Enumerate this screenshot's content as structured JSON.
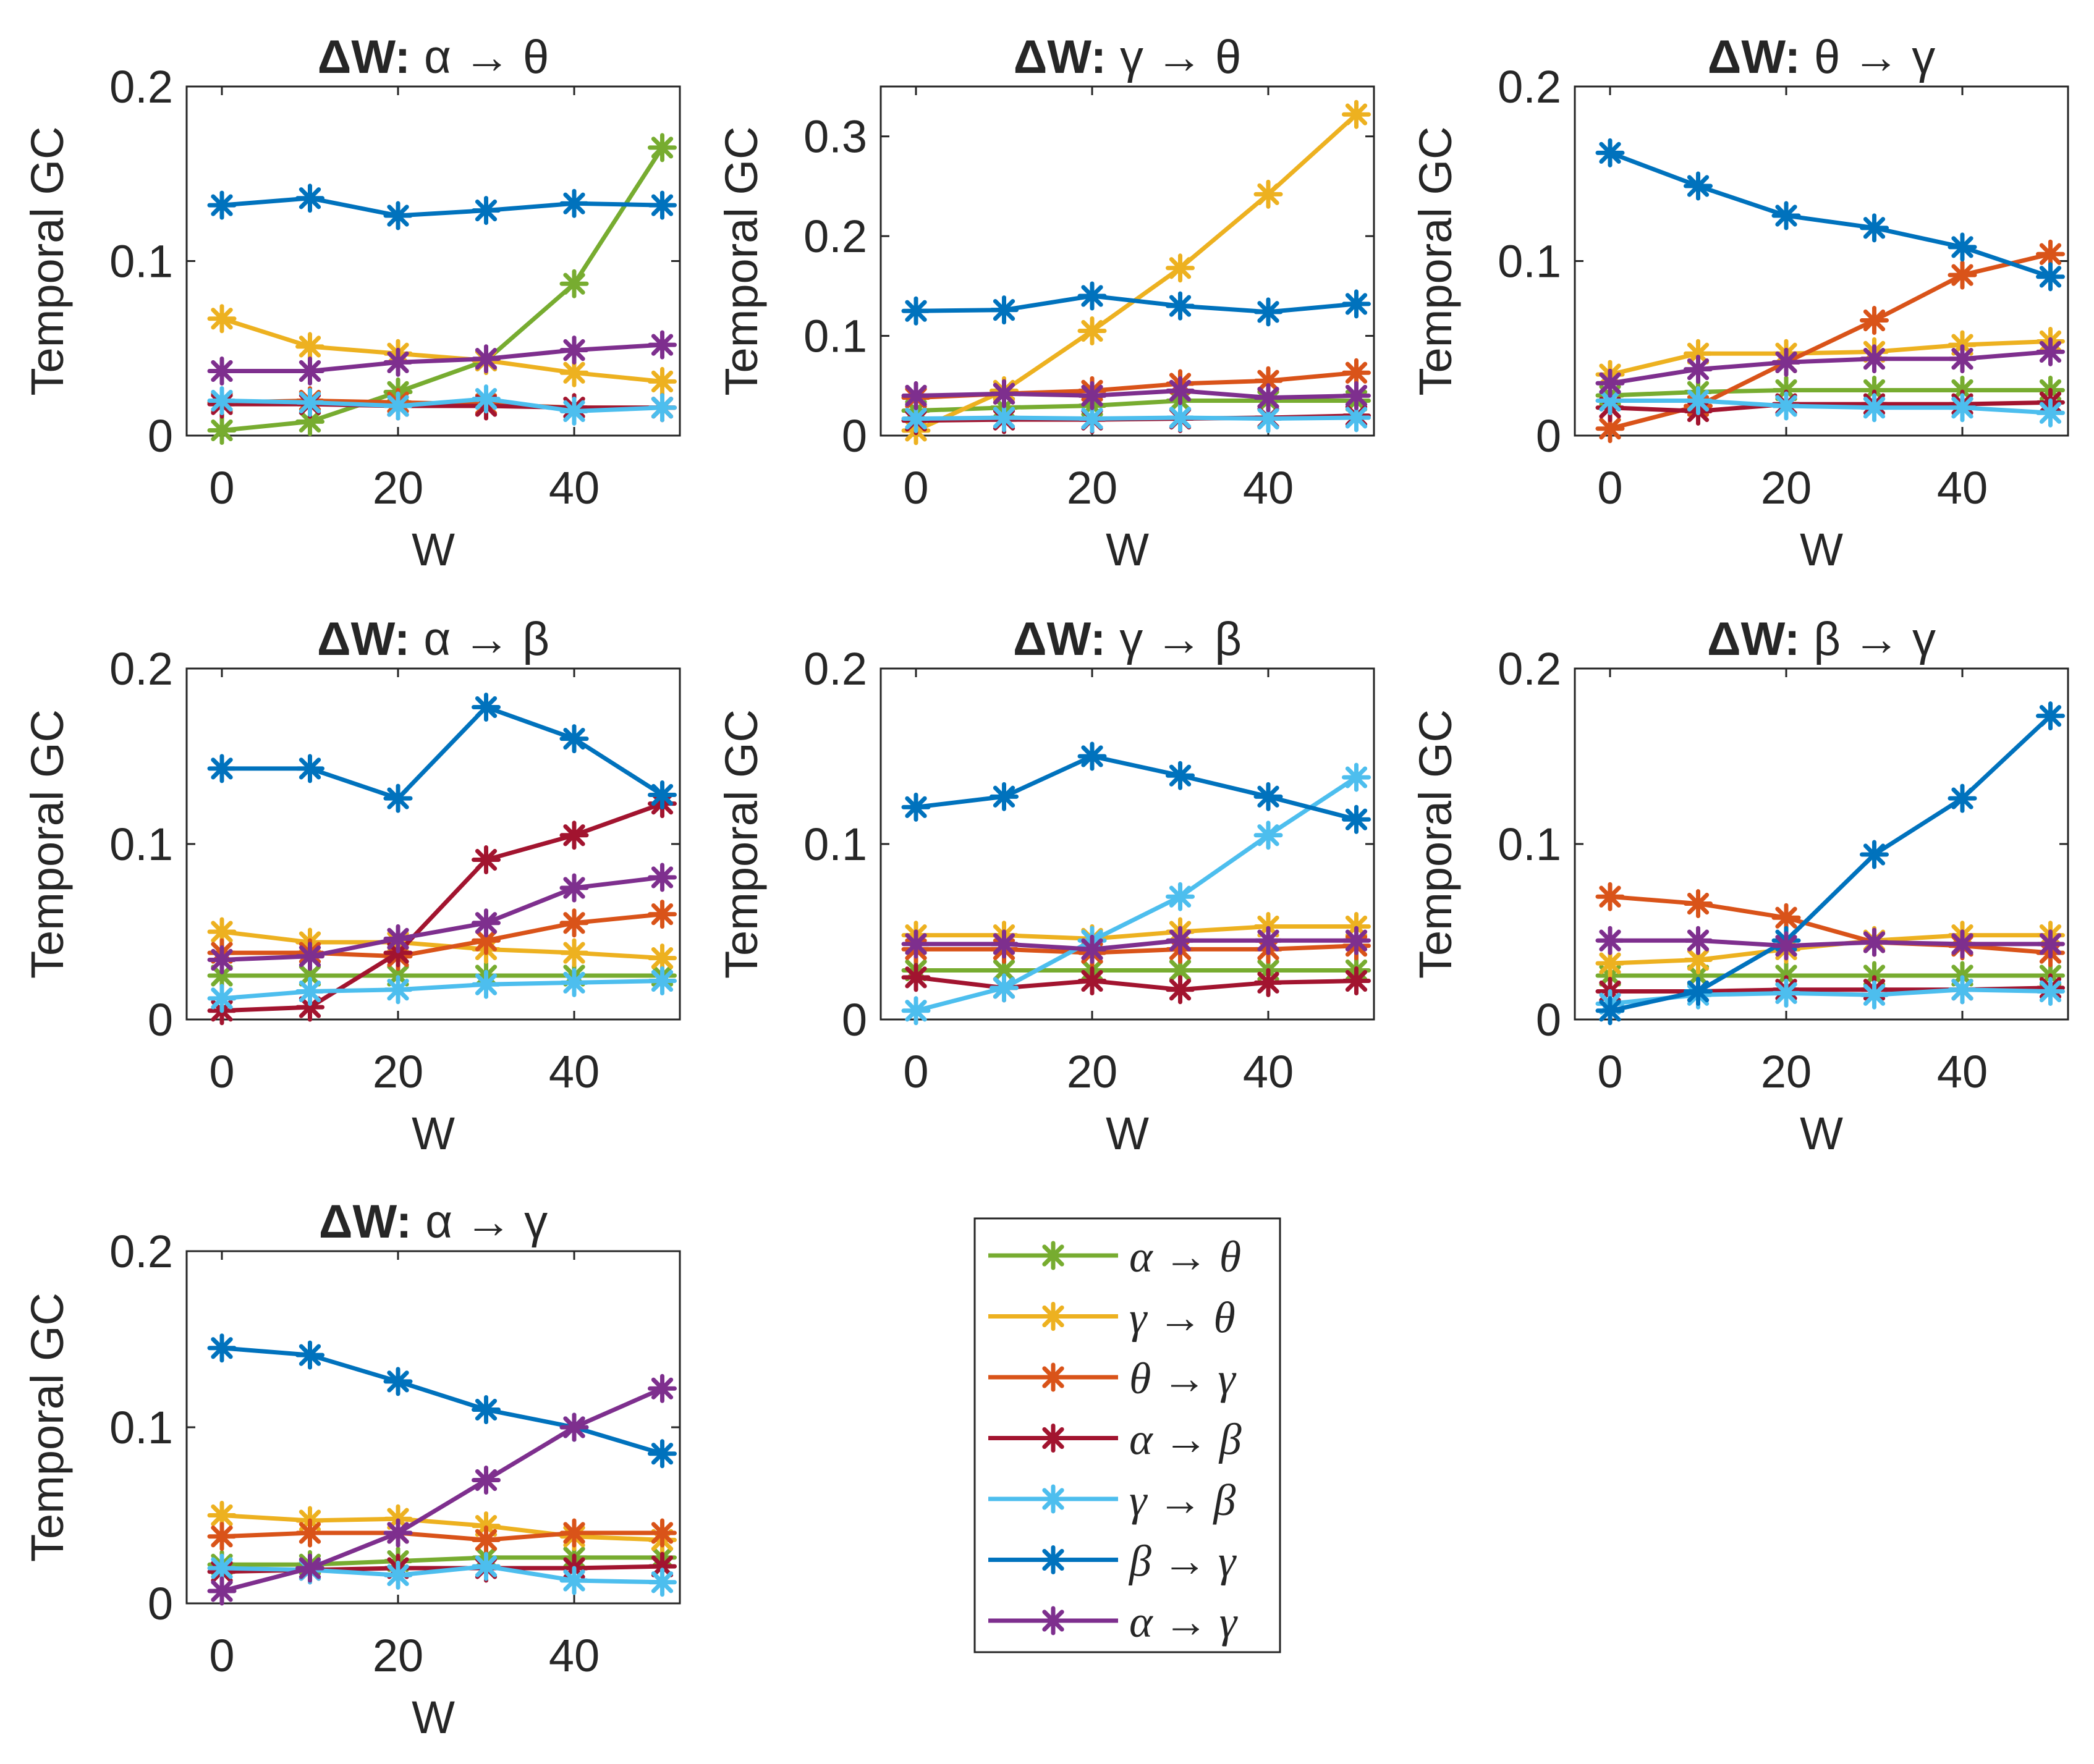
{
  "figure": {
    "arrow": "→",
    "legend": {
      "series_names": [
        "α → θ",
        "γ → θ",
        "θ → γ",
        "α → β",
        "γ → β",
        "β → γ",
        "α → γ"
      ]
    }
  },
  "chart_data": [
    {
      "type": "line",
      "title": "ΔW: α → θ",
      "title_prefix": "ΔW:",
      "title_from": "α",
      "title_to": "θ",
      "xlabel": "W",
      "ylabel": "Temporal GC",
      "x": [
        0,
        10,
        20,
        30,
        40,
        50
      ],
      "xlim": [
        -4,
        52
      ],
      "ylim": [
        0,
        0.2
      ],
      "xticks": [
        0,
        20,
        40
      ],
      "xtick_labels": [
        "0",
        "20",
        "40"
      ],
      "yticks": [
        0,
        0.1,
        0.2
      ],
      "ytick_labels": [
        "0",
        "0.1",
        "0.2"
      ],
      "series": [
        {
          "name": "α → θ",
          "color": "#77AC30",
          "values": [
            0.003,
            0.008,
            0.025,
            0.043,
            0.087,
            0.165
          ]
        },
        {
          "name": "γ → θ",
          "color": "#EDB120",
          "values": [
            0.067,
            0.051,
            0.047,
            0.043,
            0.036,
            0.031
          ]
        },
        {
          "name": "θ → γ",
          "color": "#D95319",
          "values": [
            0.019,
            0.02,
            0.019,
            0.018,
            0.016,
            0.016
          ]
        },
        {
          "name": "α → β",
          "color": "#A2142F",
          "values": [
            0.018,
            0.018,
            0.017,
            0.017,
            0.016,
            0.016
          ]
        },
        {
          "name": "γ → β",
          "color": "#4DBEEE",
          "values": [
            0.02,
            0.019,
            0.017,
            0.021,
            0.014,
            0.016
          ]
        },
        {
          "name": "β → γ",
          "color": "#0072BD",
          "values": [
            0.132,
            0.136,
            0.126,
            0.129,
            0.133,
            0.132
          ]
        },
        {
          "name": "α → γ",
          "color": "#7E2F8E",
          "values": [
            0.037,
            0.037,
            0.042,
            0.044,
            0.049,
            0.052
          ]
        }
      ]
    },
    {
      "type": "line",
      "title": "ΔW: γ → θ",
      "title_prefix": "ΔW:",
      "title_from": "γ",
      "title_to": "θ",
      "xlabel": "W",
      "ylabel": "Temporal GC",
      "x": [
        0,
        10,
        20,
        30,
        40,
        50
      ],
      "xlim": [
        -4,
        52
      ],
      "ylim": [
        0,
        0.35
      ],
      "xticks": [
        0,
        20,
        40
      ],
      "xtick_labels": [
        "0",
        "20",
        "40"
      ],
      "yticks": [
        0,
        0.1,
        0.2,
        0.3
      ],
      "ytick_labels": [
        "0",
        "0.1",
        "0.2",
        "0.3"
      ],
      "series": [
        {
          "name": "α → θ",
          "color": "#77AC30",
          "values": [
            0.025,
            0.028,
            0.03,
            0.035,
            0.035,
            0.035
          ]
        },
        {
          "name": "γ → θ",
          "color": "#EDB120",
          "values": [
            0.005,
            0.045,
            0.105,
            0.168,
            0.242,
            0.322
          ]
        },
        {
          "name": "θ → γ",
          "color": "#D95319",
          "values": [
            0.038,
            0.042,
            0.045,
            0.052,
            0.055,
            0.063
          ]
        },
        {
          "name": "α → β",
          "color": "#A2142F",
          "values": [
            0.015,
            0.016,
            0.016,
            0.017,
            0.018,
            0.02
          ]
        },
        {
          "name": "γ → β",
          "color": "#4DBEEE",
          "values": [
            0.017,
            0.018,
            0.017,
            0.018,
            0.017,
            0.018
          ]
        },
        {
          "name": "β → γ",
          "color": "#0072BD",
          "values": [
            0.125,
            0.126,
            0.14,
            0.13,
            0.124,
            0.132
          ]
        },
        {
          "name": "α → γ",
          "color": "#7E2F8E",
          "values": [
            0.04,
            0.042,
            0.04,
            0.045,
            0.038,
            0.04
          ]
        }
      ]
    },
    {
      "type": "line",
      "title": "ΔW: θ → γ",
      "title_prefix": "ΔW:",
      "title_from": "θ",
      "title_to": "γ",
      "xlabel": "W",
      "ylabel": "Temporal GC",
      "x": [
        0,
        10,
        20,
        30,
        40,
        50
      ],
      "xlim": [
        -4,
        52
      ],
      "ylim": [
        0,
        0.2
      ],
      "xticks": [
        0,
        20,
        40
      ],
      "xtick_labels": [
        "0",
        "20",
        "40"
      ],
      "yticks": [
        0,
        0.1,
        0.2
      ],
      "ytick_labels": [
        "0",
        "0.1",
        "0.2"
      ],
      "series": [
        {
          "name": "α → θ",
          "color": "#77AC30",
          "values": [
            0.023,
            0.025,
            0.026,
            0.026,
            0.026,
            0.026
          ]
        },
        {
          "name": "γ → θ",
          "color": "#EDB120",
          "values": [
            0.035,
            0.047,
            0.047,
            0.048,
            0.052,
            0.054
          ]
        },
        {
          "name": "θ → γ",
          "color": "#D95319",
          "values": [
            0.004,
            0.017,
            0.042,
            0.066,
            0.092,
            0.104
          ]
        },
        {
          "name": "α → β",
          "color": "#A2142F",
          "values": [
            0.016,
            0.014,
            0.018,
            0.018,
            0.018,
            0.019
          ]
        },
        {
          "name": "γ → β",
          "color": "#4DBEEE",
          "values": [
            0.02,
            0.02,
            0.017,
            0.016,
            0.016,
            0.013
          ]
        },
        {
          "name": "β → γ",
          "color": "#0072BD",
          "values": [
            0.162,
            0.143,
            0.126,
            0.119,
            0.108,
            0.091
          ]
        },
        {
          "name": "α → γ",
          "color": "#7E2F8E",
          "values": [
            0.03,
            0.038,
            0.042,
            0.044,
            0.044,
            0.048
          ]
        }
      ]
    },
    {
      "type": "line",
      "title": "ΔW: α → β",
      "title_prefix": "ΔW:",
      "title_from": "α",
      "title_to": "β",
      "xlabel": "W",
      "ylabel": "Temporal GC",
      "x": [
        0,
        10,
        20,
        30,
        40,
        50
      ],
      "xlim": [
        -4,
        52
      ],
      "ylim": [
        0,
        0.2
      ],
      "xticks": [
        0,
        20,
        40
      ],
      "xtick_labels": [
        "0",
        "20",
        "40"
      ],
      "yticks": [
        0,
        0.1,
        0.2
      ],
      "ytick_labels": [
        "0",
        "0.1",
        "0.2"
      ],
      "series": [
        {
          "name": "α → θ",
          "color": "#77AC30",
          "values": [
            0.025,
            0.025,
            0.025,
            0.025,
            0.025,
            0.025
          ]
        },
        {
          "name": "γ → θ",
          "color": "#EDB120",
          "values": [
            0.05,
            0.044,
            0.044,
            0.04,
            0.038,
            0.035
          ]
        },
        {
          "name": "θ → γ",
          "color": "#D95319",
          "values": [
            0.038,
            0.038,
            0.036,
            0.045,
            0.055,
            0.06
          ]
        },
        {
          "name": "α → β",
          "color": "#A2142F",
          "values": [
            0.005,
            0.007,
            0.038,
            0.091,
            0.105,
            0.123
          ]
        },
        {
          "name": "γ → β",
          "color": "#4DBEEE",
          "values": [
            0.012,
            0.016,
            0.017,
            0.02,
            0.021,
            0.022
          ]
        },
        {
          "name": "β → γ",
          "color": "#0072BD",
          "values": [
            0.143,
            0.143,
            0.126,
            0.178,
            0.16,
            0.128
          ]
        },
        {
          "name": "α → γ",
          "color": "#7E2F8E",
          "values": [
            0.034,
            0.036,
            0.046,
            0.055,
            0.075,
            0.081
          ]
        }
      ]
    },
    {
      "type": "line",
      "title": "ΔW: γ → β",
      "title_prefix": "ΔW:",
      "title_from": "γ",
      "title_to": "β",
      "xlabel": "W",
      "ylabel": "Temporal GC",
      "x": [
        0,
        10,
        20,
        30,
        40,
        50
      ],
      "xlim": [
        -4,
        52
      ],
      "ylim": [
        0,
        0.2
      ],
      "xticks": [
        0,
        20,
        40
      ],
      "xtick_labels": [
        "0",
        "20",
        "40"
      ],
      "yticks": [
        0,
        0.1,
        0.2
      ],
      "ytick_labels": [
        "0",
        "0.1",
        "0.2"
      ],
      "series": [
        {
          "name": "α → θ",
          "color": "#77AC30",
          "values": [
            0.028,
            0.028,
            0.028,
            0.028,
            0.028,
            0.028
          ]
        },
        {
          "name": "γ → θ",
          "color": "#EDB120",
          "values": [
            0.048,
            0.048,
            0.046,
            0.05,
            0.053,
            0.053
          ]
        },
        {
          "name": "θ → γ",
          "color": "#D95319",
          "values": [
            0.04,
            0.04,
            0.038,
            0.04,
            0.04,
            0.042
          ]
        },
        {
          "name": "α → β",
          "color": "#A2142F",
          "values": [
            0.024,
            0.018,
            0.022,
            0.017,
            0.021,
            0.022
          ]
        },
        {
          "name": "γ → β",
          "color": "#4DBEEE",
          "values": [
            0.005,
            0.018,
            0.045,
            0.07,
            0.105,
            0.138
          ]
        },
        {
          "name": "β → γ",
          "color": "#0072BD",
          "values": [
            0.121,
            0.127,
            0.15,
            0.139,
            0.127,
            0.114
          ]
        },
        {
          "name": "α → γ",
          "color": "#7E2F8E",
          "values": [
            0.043,
            0.043,
            0.04,
            0.045,
            0.045,
            0.045
          ]
        }
      ]
    },
    {
      "type": "line",
      "title": "ΔW: β →  γ",
      "title_prefix": "ΔW:",
      "title_from": "β",
      "title_to": "γ",
      "xlabel": "W",
      "ylabel": "Temporal GC",
      "x": [
        0,
        10,
        20,
        30,
        40,
        50
      ],
      "xlim": [
        -4,
        52
      ],
      "ylim": [
        0,
        0.2
      ],
      "xticks": [
        0,
        20,
        40
      ],
      "xtick_labels": [
        "0",
        "20",
        "40"
      ],
      "yticks": [
        0,
        0.1,
        0.2
      ],
      "ytick_labels": [
        "0",
        "0.1",
        "0.2"
      ],
      "series": [
        {
          "name": "α → θ",
          "color": "#77AC30",
          "values": [
            0.025,
            0.025,
            0.025,
            0.025,
            0.025,
            0.025
          ]
        },
        {
          "name": "γ → θ",
          "color": "#EDB120",
          "values": [
            0.032,
            0.034,
            0.04,
            0.045,
            0.048,
            0.048
          ]
        },
        {
          "name": "θ → γ",
          "color": "#D95319",
          "values": [
            0.07,
            0.066,
            0.058,
            0.044,
            0.042,
            0.038
          ]
        },
        {
          "name": "α → β",
          "color": "#A2142F",
          "values": [
            0.016,
            0.016,
            0.017,
            0.017,
            0.017,
            0.018
          ]
        },
        {
          "name": "γ → β",
          "color": "#4DBEEE",
          "values": [
            0.009,
            0.014,
            0.015,
            0.014,
            0.017,
            0.016
          ]
        },
        {
          "name": "β → γ",
          "color": "#0072BD",
          "values": [
            0.005,
            0.016,
            0.045,
            0.094,
            0.126,
            0.173
          ]
        },
        {
          "name": "α → γ",
          "color": "#7E2F8E",
          "values": [
            0.045,
            0.045,
            0.042,
            0.044,
            0.043,
            0.043
          ]
        }
      ]
    },
    {
      "type": "line",
      "title": "ΔW: α → γ",
      "title_prefix": "ΔW:",
      "title_from": "α",
      "title_to": "γ",
      "xlabel": "W",
      "ylabel": "Temporal GC",
      "x": [
        0,
        10,
        20,
        30,
        40,
        50
      ],
      "xlim": [
        -4,
        52
      ],
      "ylim": [
        0,
        0.2
      ],
      "xticks": [
        0,
        20,
        40
      ],
      "xtick_labels": [
        "0",
        "20",
        "40"
      ],
      "yticks": [
        0,
        0.1,
        0.2
      ],
      "ytick_labels": [
        "0",
        "0.1",
        "0.2"
      ],
      "series": [
        {
          "name": "α → θ",
          "color": "#77AC30",
          "values": [
            0.022,
            0.022,
            0.024,
            0.026,
            0.026,
            0.026
          ]
        },
        {
          "name": "γ → θ",
          "color": "#EDB120",
          "values": [
            0.05,
            0.047,
            0.048,
            0.044,
            0.038,
            0.036
          ]
        },
        {
          "name": "θ → γ",
          "color": "#D95319",
          "values": [
            0.038,
            0.04,
            0.04,
            0.036,
            0.04,
            0.04
          ]
        },
        {
          "name": "α → β",
          "color": "#A2142F",
          "values": [
            0.018,
            0.019,
            0.02,
            0.02,
            0.02,
            0.021
          ]
        },
        {
          "name": "γ → β",
          "color": "#4DBEEE",
          "values": [
            0.02,
            0.019,
            0.016,
            0.021,
            0.013,
            0.012
          ]
        },
        {
          "name": "β → γ",
          "color": "#0072BD",
          "values": [
            0.145,
            0.141,
            0.126,
            0.11,
            0.1,
            0.085
          ]
        },
        {
          "name": "α → γ",
          "color": "#7E2F8E",
          "values": [
            0.007,
            0.02,
            0.04,
            0.07,
            0.1,
            0.122
          ]
        }
      ]
    }
  ]
}
